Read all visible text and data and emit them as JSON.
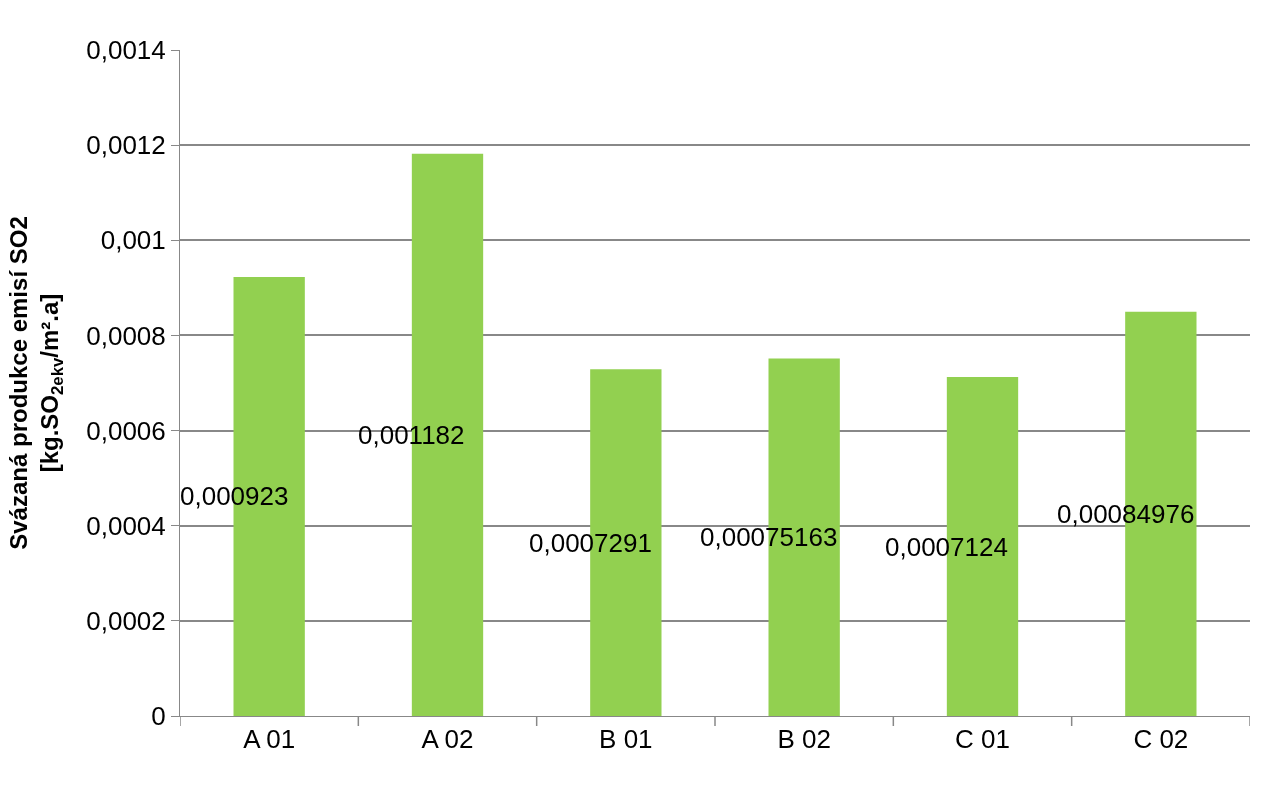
{
  "chart_data": {
    "type": "bar",
    "ylabel": "Svázaná produkce emisí SO2\n[kg.SO$_{2ekv}$/m².a]",
    "categories": [
      "A 01",
      "A 02",
      "B 01",
      "B 02",
      "C 01",
      "C 02"
    ],
    "values": [
      0.000923,
      0.001182,
      0.0007291,
      0.00075163,
      0.0007124,
      0.00084976
    ],
    "value_labels": [
      "0,000923",
      "0,001182",
      "0,0007291",
      "0,00075163",
      "0,0007124",
      "0,00084976"
    ],
    "color": "#92d050",
    "ylim": [
      0,
      0.0014
    ],
    "yticks": [
      {
        "value": 0,
        "label": "0"
      },
      {
        "value": 0.0002,
        "label": "0,0002"
      },
      {
        "value": 0.0004,
        "label": "0,0004"
      },
      {
        "value": 0.0006,
        "label": "0,0006"
      },
      {
        "value": 0.0008,
        "label": "0,0008"
      },
      {
        "value": 0.001,
        "label": "0,001"
      },
      {
        "value": 0.0012,
        "label": "0,0012"
      },
      {
        "value": 0.0014,
        "label": "0,0014"
      }
    ],
    "grid": "y"
  }
}
